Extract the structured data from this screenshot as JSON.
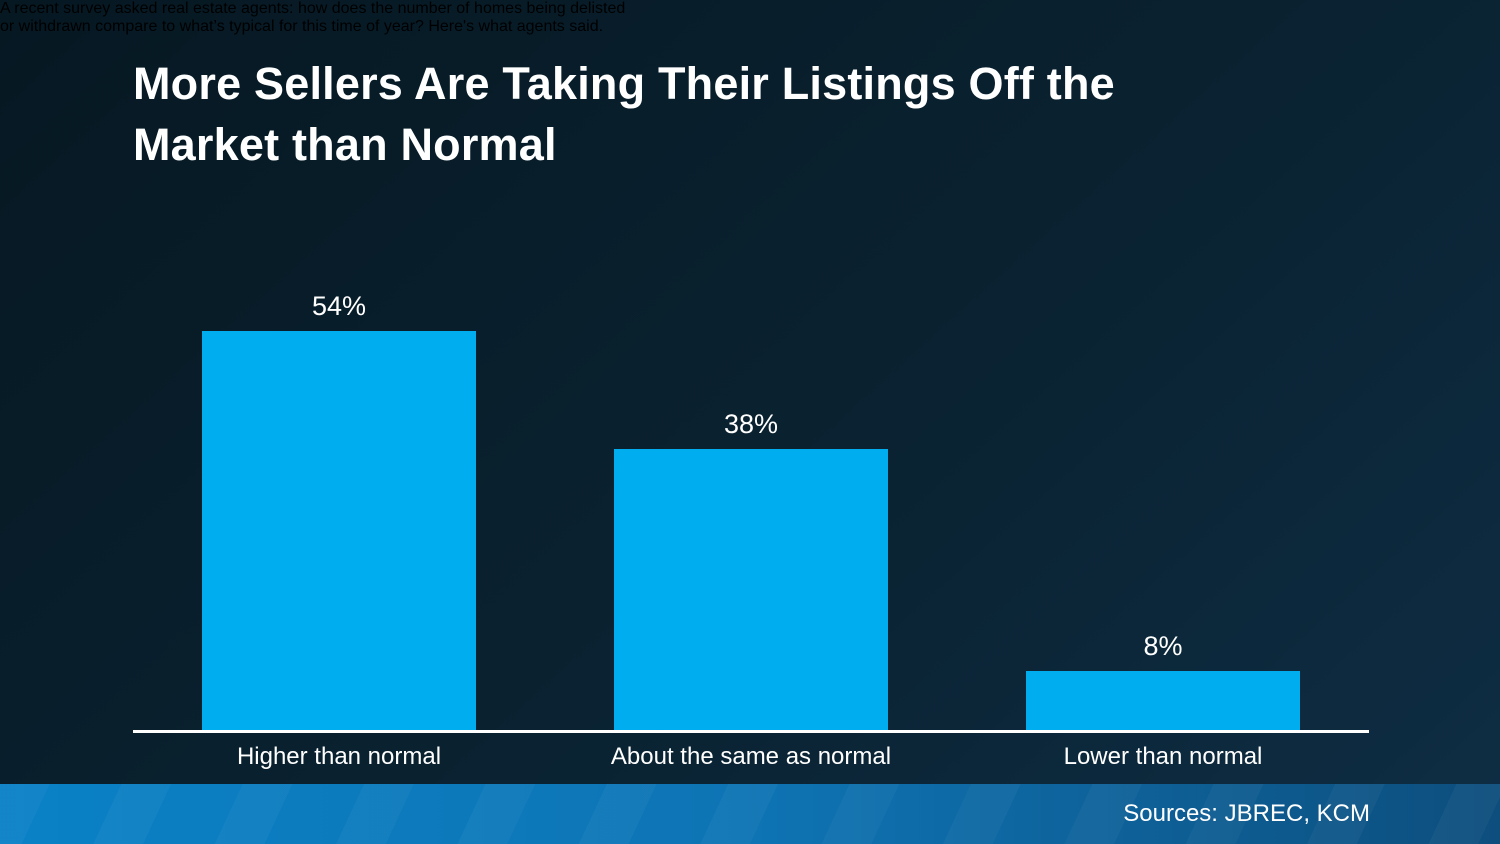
{
  "slide": {
    "title_lines": [
      "More Sellers Are Taking Their Listings Off the",
      "Market than Normal"
    ],
    "subtitle_lines": [
      "A recent survey asked real estate agents: how does the number of homes being delisted",
      "or withdrawn compare to what’s typical for this time of year? Here's what agents said."
    ],
    "sources": "Sources: JBREC, KCM"
  },
  "colors": {
    "background_dark": "#061822",
    "background_light": "#0e2d44",
    "bar": "#00aeef",
    "text": "#ffffff",
    "axis": "#ffffff",
    "footer_gradient_left": "#0a81c6",
    "footer_gradient_right": "#0d4e7d"
  },
  "chart_data": {
    "type": "bar",
    "title": "More Sellers Are Taking Their Listings Off the Market than Normal",
    "subtitle": "A recent survey asked real estate agents: how does the number of homes being delisted or withdrawn compare to what’s typical for this time of year? Here's what agents said.",
    "categories": [
      "Higher than normal",
      "About the same as normal",
      "Lower than normal"
    ],
    "values": [
      54,
      38,
      8
    ],
    "value_labels": [
      "54%",
      "38%",
      "8%"
    ],
    "xlabel": "",
    "ylabel": "",
    "ylim": [
      0,
      60
    ],
    "grid": false,
    "legend": "none",
    "bar_color": "#00aeef"
  }
}
